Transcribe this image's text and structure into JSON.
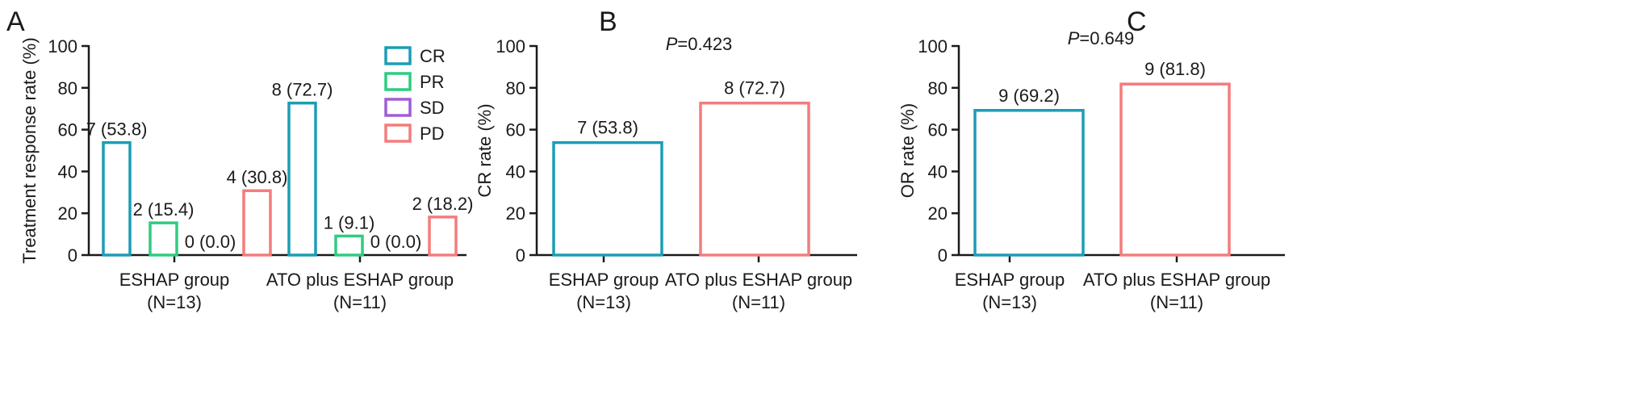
{
  "colors": {
    "CR": "#1b9db5",
    "PR": "#2ecc80",
    "SD": "#a05cd6",
    "PD": "#f47c7c",
    "axis": "#1a1a1a"
  },
  "chart_data": [
    {
      "panel": "A",
      "type": "bar",
      "ylabel": "Treatment response rate (%)",
      "ylim": [
        0,
        100
      ],
      "yticks": [
        "0",
        "20",
        "40",
        "60",
        "80",
        "100"
      ],
      "legend_placement": "top-right",
      "categories": [
        {
          "line1": "ESHAP group",
          "line2": "(N=13)"
        },
        {
          "line1": "ATO plus ESHAP group",
          "line2": "(N=11)"
        }
      ],
      "series": [
        {
          "name": "CR",
          "values": [
            53.8,
            72.7
          ],
          "labels": [
            "7 (53.8)",
            "8 (72.7)"
          ]
        },
        {
          "name": "PR",
          "values": [
            15.4,
            9.1
          ],
          "labels": [
            "2 (15.4)",
            "1 (9.1)"
          ]
        },
        {
          "name": "SD",
          "values": [
            0.0,
            0.0
          ],
          "labels": [
            "0 (0.0)",
            "0 (0.0)"
          ]
        },
        {
          "name": "PD",
          "values": [
            30.8,
            18.2
          ],
          "labels": [
            "4 (30.8)",
            "2 (18.2)"
          ]
        }
      ]
    },
    {
      "panel": "B",
      "type": "bar",
      "ylabel": "CR rate (%)",
      "ylim": [
        0,
        100
      ],
      "yticks": [
        "0",
        "20",
        "40",
        "60",
        "80",
        "100"
      ],
      "pvalue": {
        "label": "P",
        "value": "=0.423"
      },
      "categories": [
        {
          "line1": "ESHAP group",
          "line2": "(N=13)"
        },
        {
          "line1": "ATO plus ESHAP group",
          "line2": "(N=11)"
        }
      ],
      "values": [
        53.8,
        72.7
      ],
      "labels": [
        "7 (53.8)",
        "8 (72.7)"
      ]
    },
    {
      "panel": "C",
      "type": "bar",
      "ylabel": "OR rate (%)",
      "ylim": [
        0,
        100
      ],
      "yticks": [
        "0",
        "20",
        "40",
        "60",
        "80",
        "100"
      ],
      "pvalue": {
        "label": "P",
        "value": "=0.649"
      },
      "categories": [
        {
          "line1": "ESHAP group",
          "line2": "(N=13)"
        },
        {
          "line1": "ATO plus ESHAP group",
          "line2": "(N=11)"
        }
      ],
      "values": [
        69.2,
        81.8
      ],
      "labels": [
        "9 (69.2)",
        "9 (81.8)"
      ]
    }
  ]
}
